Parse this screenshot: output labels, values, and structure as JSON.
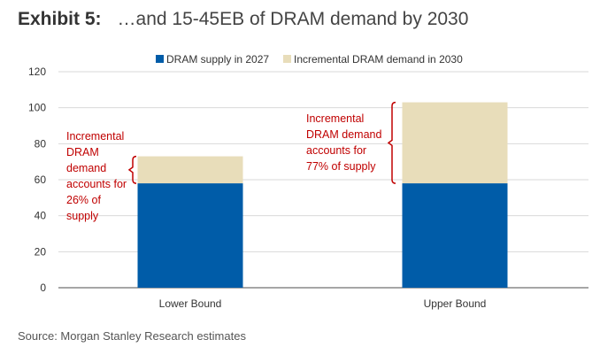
{
  "header": {
    "exhibit": "Exhibit 5:",
    "title": "…and 15-45EB of DRAM demand by 2030"
  },
  "source": "Source: Morgan Stanley Research estimates",
  "chart_data": {
    "type": "bar",
    "stacked": true,
    "categories": [
      "Lower Bound",
      "Upper Bound"
    ],
    "series": [
      {
        "name": "DRAM supply in 2027",
        "values": [
          58,
          58
        ],
        "color": "#005CA8"
      },
      {
        "name": "Incremental DRAM demand in 2030",
        "values": [
          15,
          45
        ],
        "color": "#E8DDBA"
      }
    ],
    "ylim": [
      0,
      120
    ],
    "yticks": [
      0,
      20,
      40,
      60,
      80,
      100,
      120
    ],
    "grid": true,
    "legend": "top",
    "annotations": [
      {
        "lines": [
          "Incremental",
          "DRAM",
          "demand",
          "accounts for",
          "26% of",
          "supply"
        ],
        "category": "Lower Bound"
      },
      {
        "lines": [
          "Incremental",
          "DRAM demand",
          "accounts for",
          "77% of supply"
        ],
        "category": "Upper Bound"
      }
    ],
    "annotation_color": "#C00000"
  }
}
